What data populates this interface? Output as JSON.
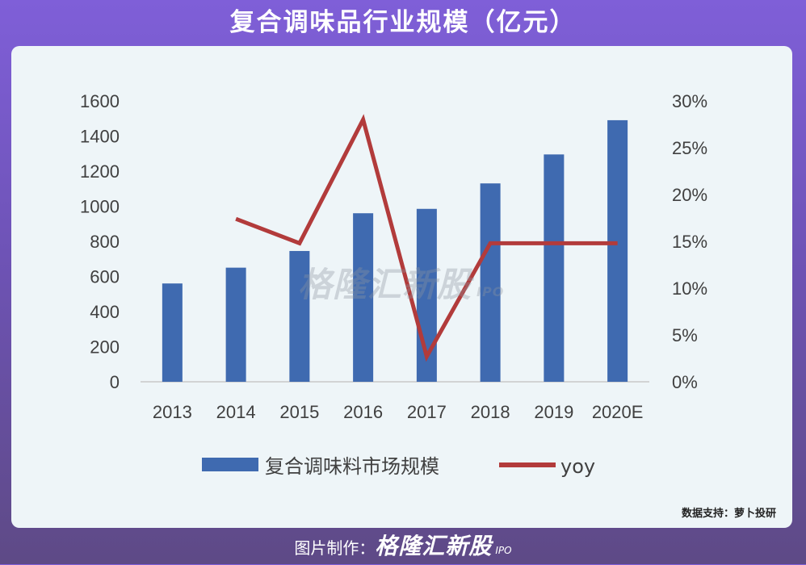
{
  "header": {
    "title": "复合调味品行业规模（亿元）"
  },
  "watermark": {
    "brand": "格隆汇新股",
    "sub": "IPO"
  },
  "source": "数据支持：萝卜投研",
  "footer": {
    "prefix": "图片制作：",
    "brand": "格隆汇新股",
    "sub": "IPO"
  },
  "colors": {
    "bar": "#3f6ab0",
    "line": "#b23b3b",
    "panel": "#eef5f8"
  },
  "chart_data": {
    "type": "bar",
    "categories": [
      "2013",
      "2014",
      "2015",
      "2016",
      "2017",
      "2018",
      "2019",
      "2020E"
    ],
    "series": [
      {
        "name": "复合调味料市场规模",
        "type": "bar",
        "axis": "left",
        "values": [
          560,
          650,
          745,
          960,
          985,
          1130,
          1295,
          1490
        ]
      },
      {
        "name": "yoy",
        "type": "line",
        "axis": "right",
        "values": [
          null,
          17.4,
          14.8,
          28.0,
          2.7,
          14.8,
          14.8,
          14.8
        ]
      }
    ],
    "y_left": {
      "min": 0,
      "max": 1600,
      "ticks": [
        "0",
        "200",
        "400",
        "600",
        "800",
        "1000",
        "1200",
        "1400",
        "1600"
      ]
    },
    "y_right": {
      "min": 0,
      "max": 30,
      "ticks": [
        "0%",
        "5%",
        "10%",
        "15%",
        "20%",
        "25%",
        "30%"
      ]
    },
    "legend": {
      "position": "bottom"
    },
    "grid": false
  }
}
